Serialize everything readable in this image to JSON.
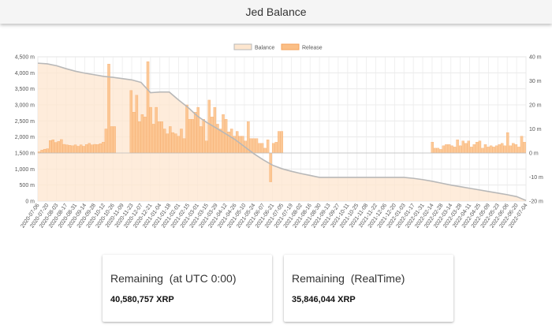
{
  "header": {
    "title": "Jed Balance"
  },
  "cards": [
    {
      "title": "Remaining  (at UTC 0:00)",
      "value": "40,580,757 XRP"
    },
    {
      "title": "Remaining  (RealTime)",
      "value": "35,846,044 XRP"
    }
  ],
  "chart_data": {
    "type": "bar+line",
    "title": "",
    "legend": {
      "position": "top-center",
      "entries": [
        "Balance",
        "Release"
      ]
    },
    "colors": {
      "balance_line": "#b8b8b8",
      "balance_fill": "#fde6cf",
      "release_bar": "#fbbf86",
      "release_edge": "#f5a35c"
    },
    "grid": true,
    "y_left": {
      "label": "",
      "range": [
        0,
        4500
      ],
      "unit": "m",
      "ticks": [
        "0 m",
        "500 m",
        "1,000 m",
        "1,500 m",
        "2,000 m",
        "2,500 m",
        "3,000 m",
        "3,500 m",
        "4,000 m",
        "4,500 m"
      ]
    },
    "y_right": {
      "label": "",
      "range": [
        -20,
        40
      ],
      "unit": "m",
      "ticks": [
        "-20 m",
        "-10 m",
        "0 m",
        "10 m",
        "20 m",
        "30 m",
        "40 m"
      ]
    },
    "x_tick_labels": [
      "2020-07-06",
      "2020-07-20",
      "2020-08-03",
      "2020-08-17",
      "2020-08-31",
      "2020-09-14",
      "2020-09-28",
      "2020-10-12",
      "2020-10-26",
      "2020-11-09",
      "2020-11-23",
      "2020-12-07",
      "2020-12-21",
      "2021-01-04",
      "2021-01-18",
      "2021-02-01",
      "2021-02-15",
      "2021-03-01",
      "2021-03-15",
      "2021-03-29",
      "2021-04-12",
      "2021-04-26",
      "2021-05-10",
      "2021-05-24",
      "2021-06-07",
      "2021-06-21",
      "2021-07-05",
      "2021-07-19",
      "2021-08-02",
      "2021-08-16",
      "2021-08-30",
      "2021-09-13",
      "2021-09-27",
      "2021-10-11",
      "2021-10-25",
      "2021-11-08",
      "2021-11-22",
      "2021-12-06",
      "2021-12-20",
      "2022-01-03",
      "2022-01-17",
      "2022-01-31",
      "2022-02-14",
      "2022-02-28",
      "2022-03-14",
      "2022-03-28",
      "2022-04-11",
      "2022-04-25",
      "2022-05-09",
      "2022-05-23",
      "2022-06-06",
      "2022-06-20",
      "2022-07-04"
    ],
    "balance_series": {
      "name": "Balance",
      "x": [
        "2020-07-06",
        "2020-07-20",
        "2020-08-03",
        "2020-08-17",
        "2020-08-31",
        "2020-09-14",
        "2020-09-28",
        "2020-10-12",
        "2020-10-26",
        "2020-11-09",
        "2020-11-23",
        "2020-12-07",
        "2020-12-21",
        "2021-01-04",
        "2021-01-18",
        "2021-02-01",
        "2021-02-15",
        "2021-03-01",
        "2021-03-15",
        "2021-03-29",
        "2021-04-12",
        "2021-04-26",
        "2021-05-10",
        "2021-05-24",
        "2021-06-07",
        "2021-06-21",
        "2021-07-05",
        "2021-07-19",
        "2021-08-02",
        "2021-08-16",
        "2021-08-30",
        "2021-09-13",
        "2021-09-27",
        "2021-10-11",
        "2021-10-25",
        "2021-11-08",
        "2021-11-22",
        "2021-12-06",
        "2021-12-20",
        "2022-01-03",
        "2022-01-17",
        "2022-01-31",
        "2022-02-14",
        "2022-02-28",
        "2022-03-14",
        "2022-03-28",
        "2022-04-11",
        "2022-04-25",
        "2022-05-09",
        "2022-05-23",
        "2022-06-06",
        "2022-06-20",
        "2022-07-04"
      ],
      "values": [
        4300,
        4280,
        4220,
        4130,
        4050,
        3990,
        3940,
        3890,
        3860,
        3820,
        3780,
        3700,
        3380,
        3400,
        3400,
        3150,
        2920,
        2650,
        2450,
        2280,
        2100,
        1920,
        1700,
        1480,
        1290,
        1120,
        1010,
        930,
        860,
        800,
        740,
        740,
        740,
        740,
        740,
        740,
        740,
        740,
        740,
        740,
        710,
        670,
        620,
        560,
        500,
        450,
        400,
        350,
        300,
        250,
        200,
        140,
        20
      ]
    },
    "release_series": {
      "name": "Release",
      "values_m": [
        0.5,
        1.2,
        1.6,
        1.8,
        5.2,
        5.5,
        4.4,
        4.8,
        5.6,
        3.6,
        3.4,
        3.2,
        3.0,
        3.4,
        2.8,
        3.4,
        2.8,
        3.5,
        4.0,
        3.4,
        3.6,
        3.5,
        3.9,
        4.5,
        10.0,
        37.0,
        11.0,
        11.0,
        0,
        0,
        0,
        0,
        0,
        26.0,
        17.0,
        24.0,
        13.0,
        16.0,
        15.0,
        38.0,
        19.0,
        12.0,
        19.0,
        13.0,
        13.0,
        10.0,
        8.0,
        11.0,
        8.5,
        8.0,
        7.0,
        10.0,
        6.0,
        20.0,
        14.0,
        14.0,
        17.0,
        19.0,
        11.0,
        14.0,
        5.0,
        22.0,
        15.0,
        19.0,
        12.0,
        10.0,
        16.0,
        14.0,
        8.8,
        10.0,
        7.0,
        9.0,
        7.0,
        7.0,
        5.0,
        13.0,
        6.0,
        6.0,
        6.0,
        4.0,
        4.0,
        2.0,
        5.5,
        -12.0,
        4.0,
        4.5,
        9.0,
        9.0,
        0,
        0,
        0,
        0,
        0,
        0,
        0,
        0,
        0,
        0,
        0,
        0,
        0,
        0,
        0,
        0,
        0,
        0,
        0,
        0,
        0,
        0,
        0,
        0,
        0,
        0,
        0,
        0,
        0,
        0,
        0,
        0,
        0,
        0,
        0,
        0,
        0,
        0,
        0,
        0,
        0,
        0,
        0,
        0,
        0,
        0,
        0,
        0,
        0,
        0,
        0,
        0,
        0,
        4.5,
        2.0,
        2.0,
        1.5,
        3.0,
        3.5,
        3.5,
        3.0,
        2.5,
        5.5,
        3.0,
        5.0,
        4.0,
        5.0,
        2.5,
        3.5,
        4.5,
        5.0,
        2.0,
        3.5,
        2.5,
        3.0,
        2.5,
        3.0,
        3.5,
        4.0,
        3.0,
        8.5,
        3.0,
        4.0,
        3.5,
        2.5,
        7.0,
        4.5
      ]
    }
  }
}
